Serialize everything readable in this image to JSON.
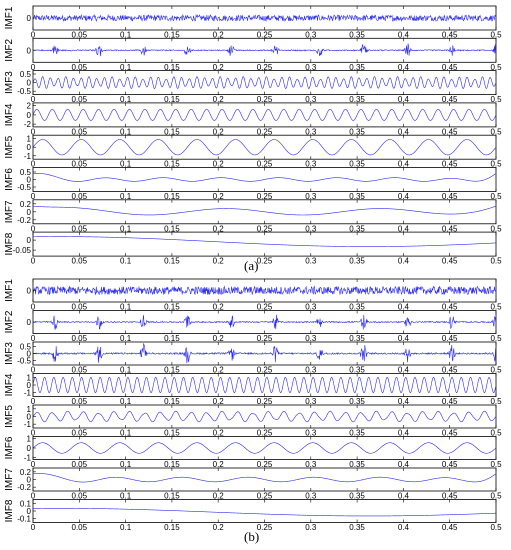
{
  "colors": {
    "signal": "#2a2af0",
    "axis": "#000000",
    "background": "#ffffff"
  },
  "chart_data": [
    {
      "type": "line",
      "caption": "(a)",
      "x_range": [
        0,
        0.5
      ],
      "x_ticks": [
        "0",
        "0.05",
        "0.1",
        "0.15",
        "0.2",
        "0.25",
        "0.3",
        "0.35",
        "0.4",
        "0.45",
        "0.5"
      ],
      "panels": [
        {
          "label": "IMF1",
          "y_ticks": [
            "0"
          ],
          "ylim": [
            -1,
            1
          ],
          "amplitude": 0.25,
          "pattern": "noise",
          "freq": 1
        },
        {
          "label": "IMF2",
          "y_ticks": [
            "0"
          ],
          "ylim": [
            -1,
            1
          ],
          "amplitude": 0.6,
          "pattern": "bursts",
          "freq": 21
        },
        {
          "label": "IMF3",
          "y_ticks": [
            "0.5",
            "0",
            "-0.5"
          ],
          "ylim": [
            -0.7,
            0.7
          ],
          "amplitude": 0.35,
          "pattern": "modulated",
          "freq": 120
        },
        {
          "label": "IMF4",
          "y_ticks": [
            "2",
            "0",
            "-2"
          ],
          "ylim": [
            -2.6,
            2.6
          ],
          "amplitude": 1.2,
          "pattern": "sine",
          "freq": 60
        },
        {
          "label": "IMF5",
          "y_ticks": [
            "1",
            "0",
            "-1"
          ],
          "ylim": [
            -1.4,
            1.4
          ],
          "amplitude": 0.9,
          "pattern": "sine",
          "freq": 24
        },
        {
          "label": "IMF6",
          "y_ticks": [
            "0.5",
            "0",
            "-0.5"
          ],
          "ylim": [
            -0.8,
            0.8
          ],
          "amplitude": 0.12,
          "pattern": "edges",
          "freq": 16
        },
        {
          "label": "IMF7",
          "y_ticks": [
            "0.2",
            "0",
            "-0.2"
          ],
          "ylim": [
            -0.3,
            0.3
          ],
          "amplitude": 0.08,
          "pattern": "slow",
          "freq": 6
        },
        {
          "label": "IMF8",
          "y_ticks": [
            "0",
            "-0.05"
          ],
          "ylim": [
            -0.08,
            0.04
          ],
          "amplitude": 0.025,
          "pattern": "trend",
          "freq": 1.5
        }
      ]
    },
    {
      "type": "line",
      "caption": "(b)",
      "x_range": [
        0,
        0.5
      ],
      "x_ticks": [
        "0",
        "0.05",
        "0.1",
        "0.15",
        "0.2",
        "0.25",
        "0.3",
        "0.35",
        "0.4",
        "0.45",
        "0.5"
      ],
      "panels": [
        {
          "label": "IMF1",
          "y_ticks": [
            "0"
          ],
          "ylim": [
            -1,
            1
          ],
          "amplitude": 0.35,
          "pattern": "noise",
          "freq": 1
        },
        {
          "label": "IMF2",
          "y_ticks": [
            "0"
          ],
          "ylim": [
            -1,
            1
          ],
          "amplitude": 0.7,
          "pattern": "bursts",
          "freq": 21
        },
        {
          "label": "IMF3",
          "y_ticks": [
            "0.5",
            "0",
            "-0.5"
          ],
          "ylim": [
            -0.8,
            0.8
          ],
          "amplitude": 0.7,
          "pattern": "bursts",
          "freq": 21
        },
        {
          "label": "IMF4",
          "y_ticks": [
            "1",
            "0",
            "-1"
          ],
          "ylim": [
            -1.5,
            1.5
          ],
          "amplitude": 1.0,
          "pattern": "sine",
          "freq": 100
        },
        {
          "label": "IMF5",
          "y_ticks": [
            "1",
            "0",
            "-1"
          ],
          "ylim": [
            -1.5,
            1.5
          ],
          "amplitude": 0.7,
          "pattern": "modulated",
          "freq": 60
        },
        {
          "label": "IMF6",
          "y_ticks": [
            "1",
            "0",
            "-1"
          ],
          "ylim": [
            -1.2,
            1.2
          ],
          "amplitude": 0.55,
          "pattern": "sine",
          "freq": 24
        },
        {
          "label": "IMF7",
          "y_ticks": [
            "0.2",
            "0",
            "-0.2"
          ],
          "ylim": [
            -0.3,
            0.3
          ],
          "amplitude": 0.06,
          "pattern": "edges",
          "freq": 14
        },
        {
          "label": "IMF8",
          "y_ticks": [
            "0.1",
            "0",
            "-0.1"
          ],
          "ylim": [
            -0.15,
            0.15
          ],
          "amplitude": 0.05,
          "pattern": "trend",
          "freq": 1.5
        }
      ]
    }
  ]
}
